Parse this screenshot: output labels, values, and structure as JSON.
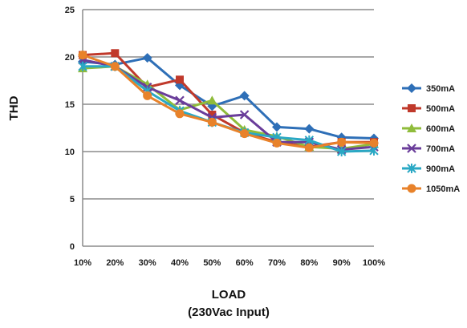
{
  "chart_data": {
    "type": "line",
    "title": "",
    "ylabel": "THD",
    "xlabel": "LOAD",
    "xlabel_sub": "(230Vac Input)",
    "categories": [
      "10%",
      "20%",
      "30%",
      "40%",
      "50%",
      "60%",
      "70%",
      "80%",
      "90%",
      "100%"
    ],
    "ylim": [
      0,
      25
    ],
    "yticks": [
      0,
      5,
      10,
      15,
      20,
      25
    ],
    "grid": true,
    "legend_position": "right",
    "series": [
      {
        "name": "350mA",
        "color": "#2e6fb7",
        "marker": "diamond",
        "values": [
          19.5,
          19.2,
          19.9,
          17.0,
          14.8,
          15.9,
          12.6,
          12.4,
          11.5,
          11.4
        ]
      },
      {
        "name": "500mA",
        "color": "#c0392b",
        "marker": "square",
        "values": [
          20.2,
          20.4,
          16.8,
          17.6,
          13.9,
          12.0,
          11.0,
          10.5,
          11.0,
          11.0
        ]
      },
      {
        "name": "600mA",
        "color": "#8fbc3b",
        "marker": "triangle",
        "values": [
          18.8,
          19.0,
          17.1,
          14.4,
          15.4,
          12.3,
          11.6,
          10.5,
          10.3,
          10.8
        ]
      },
      {
        "name": "700mA",
        "color": "#6a3d9a",
        "marker": "x",
        "values": [
          19.7,
          19.0,
          16.8,
          15.4,
          13.6,
          13.9,
          11.0,
          11.0,
          10.2,
          10.5
        ]
      },
      {
        "name": "900mA",
        "color": "#2aa8c4",
        "marker": "star",
        "values": [
          19.0,
          19.0,
          16.4,
          14.3,
          13.1,
          12.0,
          11.5,
          11.2,
          10.0,
          10.1
        ]
      },
      {
        "name": "1050mA",
        "color": "#e8822a",
        "marker": "circle",
        "values": [
          20.2,
          19.0,
          15.9,
          14.0,
          13.1,
          11.9,
          10.9,
          10.4,
          11.0,
          10.9
        ]
      }
    ]
  }
}
